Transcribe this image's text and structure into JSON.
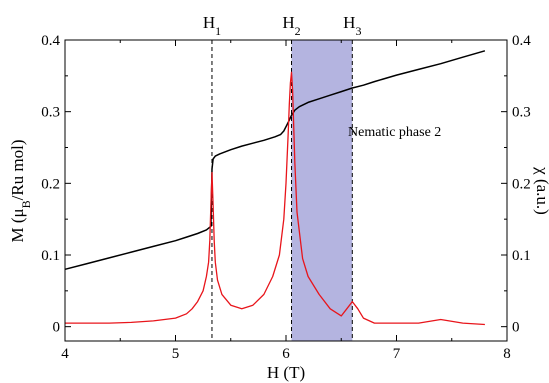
{
  "chart_data": {
    "type": "line",
    "xlabel": "H (T)",
    "ylabel_left": "M (μB/Ru mol)",
    "ylabel_right": "χ (a.u.)",
    "xlim": [
      4,
      8
    ],
    "ylim_left": [
      -0.02,
      0.4
    ],
    "ylim_right": [
      -0.02,
      0.4
    ],
    "x_ticks": [
      "4",
      "5",
      "6",
      "7",
      "8"
    ],
    "y_ticks_left": [
      "0",
      "0.1",
      "0.2",
      "0.3",
      "0.4"
    ],
    "y_ticks_right": [
      "0",
      "0.1",
      "0.2",
      "0.3",
      "0.4"
    ],
    "grid": false,
    "field_markers": [
      {
        "label": "H1",
        "base": "H",
        "sub": "1",
        "x": 5.33
      },
      {
        "label": "H2",
        "base": "H",
        "sub": "2",
        "x": 6.05
      },
      {
        "label": "H3",
        "base": "H",
        "sub": "3",
        "x": 6.6
      }
    ],
    "shaded_region": {
      "x_start": 6.05,
      "x_end": 6.6,
      "label": "Nematic phase 2",
      "color": "#b4b4e0"
    },
    "series": [
      {
        "axis": "left",
        "color": "#000000",
        "x": [
          4.0,
          4.2,
          4.4,
          4.6,
          4.8,
          5.0,
          5.1,
          5.2,
          5.28,
          5.32,
          5.33,
          5.34,
          5.36,
          5.4,
          5.5,
          5.6,
          5.7,
          5.8,
          5.9,
          5.95,
          5.98,
          6.0,
          6.02,
          6.05,
          6.08,
          6.12,
          6.2,
          6.3,
          6.4,
          6.5,
          6.6,
          6.7,
          6.8,
          7.0,
          7.2,
          7.4,
          7.6,
          7.8
        ],
        "values": [
          0.08,
          0.088,
          0.096,
          0.104,
          0.112,
          0.12,
          0.125,
          0.13,
          0.135,
          0.14,
          0.22,
          0.234,
          0.238,
          0.241,
          0.247,
          0.252,
          0.256,
          0.26,
          0.265,
          0.268,
          0.273,
          0.279,
          0.285,
          0.295,
          0.302,
          0.307,
          0.313,
          0.318,
          0.323,
          0.328,
          0.333,
          0.337,
          0.342,
          0.351,
          0.359,
          0.367,
          0.376,
          0.385
        ]
      },
      {
        "axis": "right",
        "color": "#e8151b",
        "x": [
          4.0,
          4.2,
          4.4,
          4.6,
          4.8,
          5.0,
          5.1,
          5.15,
          5.2,
          5.25,
          5.28,
          5.3,
          5.31,
          5.32,
          5.33,
          5.34,
          5.35,
          5.36,
          5.38,
          5.42,
          5.5,
          5.6,
          5.7,
          5.8,
          5.88,
          5.94,
          5.98,
          6.0,
          6.02,
          6.03,
          6.04,
          6.05,
          6.06,
          6.07,
          6.08,
          6.1,
          6.15,
          6.2,
          6.3,
          6.4,
          6.5,
          6.55,
          6.6,
          6.65,
          6.7,
          6.8,
          7.0,
          7.2,
          7.4,
          7.6,
          7.8
        ],
        "values": [
          0.005,
          0.005,
          0.005,
          0.006,
          0.008,
          0.012,
          0.018,
          0.025,
          0.035,
          0.05,
          0.07,
          0.09,
          0.12,
          0.17,
          0.215,
          0.17,
          0.12,
          0.09,
          0.065,
          0.045,
          0.03,
          0.025,
          0.03,
          0.045,
          0.07,
          0.1,
          0.15,
          0.2,
          0.27,
          0.31,
          0.34,
          0.355,
          0.33,
          0.28,
          0.23,
          0.16,
          0.095,
          0.07,
          0.045,
          0.025,
          0.015,
          0.025,
          0.035,
          0.025,
          0.012,
          0.005,
          0.005,
          0.005,
          0.01,
          0.005,
          0.003
        ]
      }
    ]
  }
}
